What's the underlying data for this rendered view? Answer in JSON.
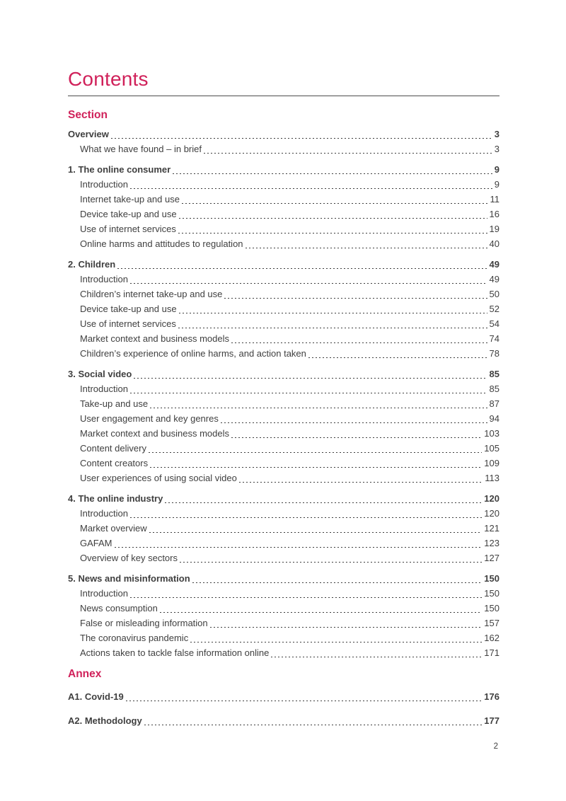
{
  "page": {
    "title": "Contents",
    "page_number": "2",
    "colors": {
      "accent": "#d0215a",
      "text": "#3f3f3f",
      "rule": "#4d4d4d"
    }
  },
  "toc": {
    "section_heading": "Section",
    "annex_heading": "Annex",
    "groups": [
      {
        "title": "Overview",
        "page": "3",
        "items": [
          {
            "label": "What we have found – in brief",
            "page": "3"
          }
        ]
      },
      {
        "title": "1. The online consumer",
        "page": "9",
        "items": [
          {
            "label": "Introduction",
            "page": "9"
          },
          {
            "label": "Internet take-up and use",
            "page": "11"
          },
          {
            "label": "Device take-up and use",
            "page": "16"
          },
          {
            "label": "Use of internet services",
            "page": "19"
          },
          {
            "label": "Online harms and attitudes to regulation",
            "page": "40"
          }
        ]
      },
      {
        "title": "2. Children",
        "page": "49",
        "items": [
          {
            "label": "Introduction",
            "page": "49"
          },
          {
            "label": "Children’s internet take-up and use",
            "page": "50"
          },
          {
            "label": "Device take-up and use",
            "page": "52"
          },
          {
            "label": "Use of internet services",
            "page": "54"
          },
          {
            "label": "Market context and business models",
            "page": "74"
          },
          {
            "label": "Children’s experience of online harms, and action taken",
            "page": "78"
          }
        ]
      },
      {
        "title": "3. Social video",
        "page": "85",
        "items": [
          {
            "label": "Introduction",
            "page": "85"
          },
          {
            "label": "Take-up and use",
            "page": "87"
          },
          {
            "label": "User engagement and key genres",
            "page": "94"
          },
          {
            "label": "Market context and business models",
            "page": "103"
          },
          {
            "label": "Content delivery",
            "page": "105"
          },
          {
            "label": "Content creators",
            "page": "109"
          },
          {
            "label": "User experiences of using social video",
            "page": "113"
          }
        ]
      },
      {
        "title": "4. The online industry",
        "page": "120",
        "items": [
          {
            "label": "Introduction",
            "page": "120"
          },
          {
            "label": "Market overview",
            "page": "121"
          },
          {
            "label": "GAFAM",
            "page": "123"
          },
          {
            "label": "Overview of key sectors",
            "page": "127"
          }
        ]
      },
      {
        "title": "5. News and misinformation",
        "page": "150",
        "items": [
          {
            "label": "Introduction",
            "page": "150"
          },
          {
            "label": "News consumption",
            "page": "150"
          },
          {
            "label": "False or misleading information",
            "page": "157"
          },
          {
            "label": "The coronavirus pandemic",
            "page": "162"
          },
          {
            "label": "Actions taken to tackle false information online",
            "page": "171"
          }
        ]
      }
    ],
    "annex_entries": [
      {
        "title": "A1. Covid-19",
        "page": "176"
      },
      {
        "title": "A2. Methodology",
        "page": "177"
      }
    ]
  }
}
